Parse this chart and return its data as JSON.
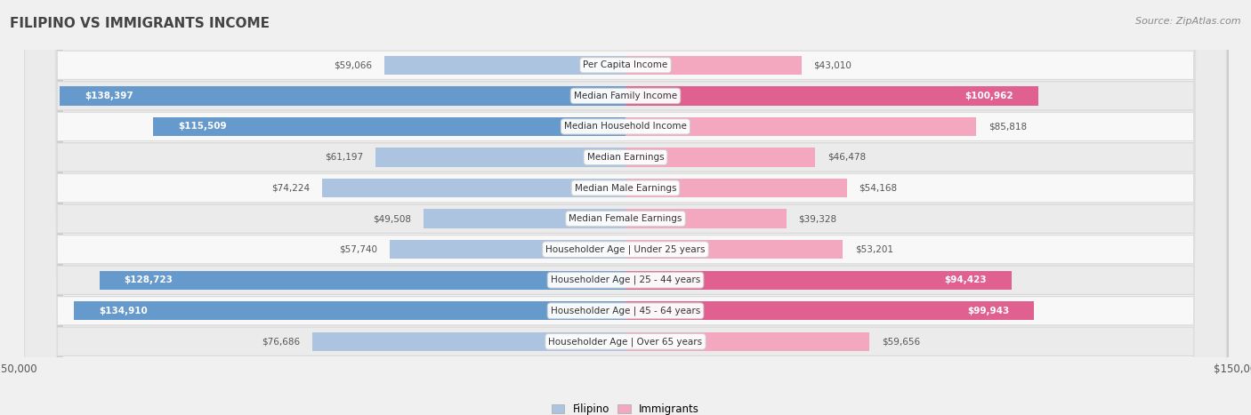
{
  "title": "FILIPINO VS IMMIGRANTS INCOME",
  "source": "Source: ZipAtlas.com",
  "categories": [
    "Per Capita Income",
    "Median Family Income",
    "Median Household Income",
    "Median Earnings",
    "Median Male Earnings",
    "Median Female Earnings",
    "Householder Age | Under 25 years",
    "Householder Age | 25 - 44 years",
    "Householder Age | 45 - 64 years",
    "Householder Age | Over 65 years"
  ],
  "filipino_values": [
    59066,
    138397,
    115509,
    61197,
    74224,
    49508,
    57740,
    128723,
    134910,
    76686
  ],
  "immigrant_values": [
    43010,
    100962,
    85818,
    46478,
    54168,
    39328,
    53201,
    94423,
    99943,
    59656
  ],
  "max_value": 150000,
  "filipino_color_light": "#adc4e0",
  "immigrant_color_light": "#f4a8c0",
  "filipino_color_solid": "#6699cc",
  "immigrant_color_solid": "#e06090",
  "solid_threshold": 0.6,
  "bg_color": "#f0f0f0",
  "row_bg_even": "#f8f8f8",
  "row_bg_odd": "#ebebeb",
  "figsize": [
    14.06,
    4.67
  ],
  "dpi": 100
}
